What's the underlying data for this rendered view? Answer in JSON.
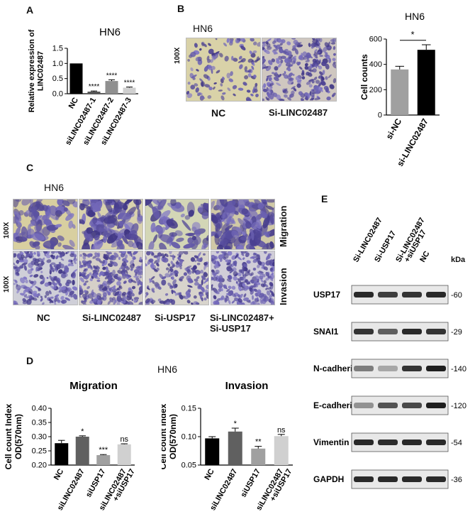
{
  "panels": {
    "A": "A",
    "B": "B",
    "C": "C",
    "D": "D",
    "E": "E"
  },
  "colors": {
    "black": "#000000",
    "dark_gray": "#555555",
    "gray": "#909090",
    "light_gray": "#cfcfcf",
    "stain": "#6a5fa8",
    "bg_stain": "#d9d2a8"
  },
  "panelA": {
    "chart_data": {
      "type": "bar",
      "title": "HN6",
      "ylabel": "Relative expression of LINC02487",
      "categories": [
        "NC",
        "siLINC02487-1",
        "siLINC02487-2",
        "siLINC02487-3"
      ],
      "values": [
        1.0,
        0.07,
        0.42,
        0.2
      ],
      "errors": [
        0.0,
        0.02,
        0.04,
        0.02
      ],
      "significance": [
        "",
        "****",
        "****",
        "****"
      ],
      "bar_colors": [
        "#000000",
        "#555555",
        "#909090",
        "#cfcfcf"
      ],
      "ylim": [
        0,
        1.5
      ],
      "yticks": [
        "0.0",
        "0.5",
        "1.0",
        "1.5"
      ]
    }
  },
  "panelB": {
    "image_title": "HN6",
    "magnification": "100X",
    "image_labels": [
      "NC",
      "Si-LINC02487"
    ],
    "chart_data": {
      "type": "bar",
      "title": "HN6",
      "ylabel": "Cell counts",
      "categories": [
        "si-NC",
        "si-LINC02487"
      ],
      "values": [
        360,
        515
      ],
      "errors": [
        25,
        40
      ],
      "significance_bracket": "*",
      "bar_colors": [
        "#a0a0a0",
        "#000000"
      ],
      "ylim": [
        0,
        600
      ],
      "yticks": [
        "0",
        "200",
        "400",
        "600"
      ]
    }
  },
  "panelC": {
    "title": "HN6",
    "row_labels": [
      "Migration",
      "Invasion"
    ],
    "magnification": "100X",
    "col_labels": [
      "NC",
      "Si-LINC02487",
      "Si-USP17",
      "Si-LINC02487+\nSi-USP17"
    ]
  },
  "panelD": {
    "title": "HN6",
    "chart_data": [
      {
        "type": "bar",
        "title": "Migration",
        "ylabel": "Cell count Index OD(570nm)",
        "categories": [
          "NC",
          "siLINC02487",
          "siUSP17",
          "siLINC02487 +siUSP17"
        ],
        "values": [
          0.277,
          0.3,
          0.235,
          0.273
        ],
        "errors": [
          0.01,
          0.003,
          0.002,
          0.002
        ],
        "significance": [
          "",
          "*",
          "***",
          "ns"
        ],
        "bar_colors": [
          "#000000",
          "#606060",
          "#a0a0a0",
          "#d0d0d0"
        ],
        "ylim": [
          0.2,
          0.4
        ],
        "yticks": [
          "0.20",
          "0.25",
          "0.30",
          "0.35",
          "0.40"
        ]
      },
      {
        "type": "bar",
        "title": "Invasion",
        "ylabel": "Cell count Index OD(570nm)",
        "categories": [
          "NC",
          "siLINC02487",
          "siUSP17",
          "siLINC02487 +siUSP17"
        ],
        "values": [
          0.097,
          0.109,
          0.079,
          0.101
        ],
        "errors": [
          0.003,
          0.006,
          0.004,
          0.003
        ],
        "significance": [
          "",
          "*",
          "**",
          "ns"
        ],
        "bar_colors": [
          "#000000",
          "#606060",
          "#a0a0a0",
          "#d0d0d0"
        ],
        "ylim": [
          0.05,
          0.15
        ],
        "yticks": [
          "0.05",
          "0.10",
          "0.15"
        ]
      }
    ]
  },
  "panelE": {
    "lanes": [
      "Si-LINC02487",
      "Si-USP17",
      "Si-LINC02487\n+siUSP17",
      "NC"
    ],
    "kda_label": "kDa",
    "blots": [
      {
        "protein": "USP17",
        "kda": "-60"
      },
      {
        "protein": "SNAI1",
        "kda": "-29"
      },
      {
        "protein": "N-cadherin",
        "kda": "-140"
      },
      {
        "protein": "E-cadherin",
        "kda": "-120"
      },
      {
        "protein": "Vimentin",
        "kda": "-54"
      },
      {
        "protein": "GAPDH",
        "kda": "-36"
      }
    ]
  }
}
